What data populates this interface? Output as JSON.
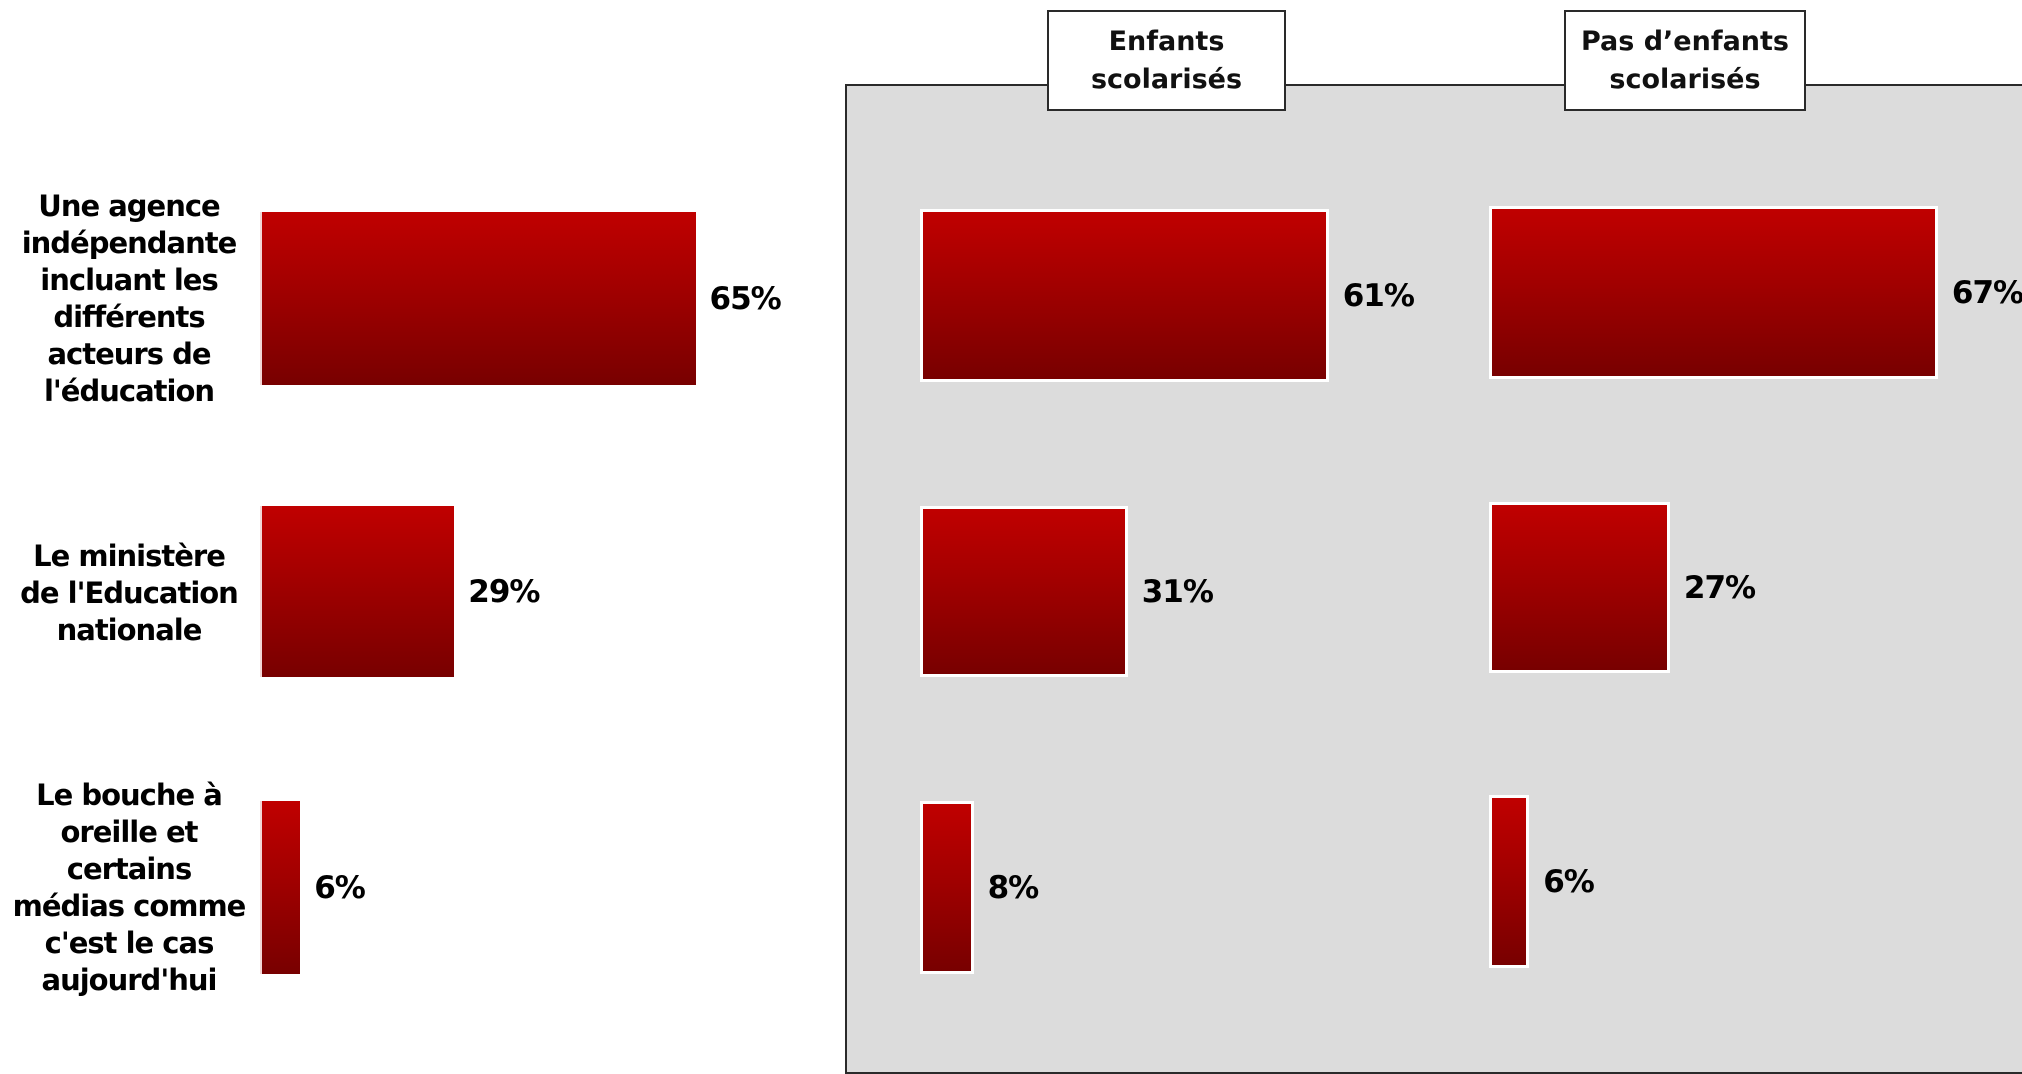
{
  "chart_data": {
    "type": "bar",
    "orientation": "horizontal",
    "categories": [
      "Une agence indépendante incluant les différents acteurs de l'éducation",
      "Le ministère de l'Education nationale",
      "Le bouche à oreille et certains médias comme c'est le cas aujourd'hui"
    ],
    "category_lines": [
      [
        "Une agence",
        "indépendante",
        "incluant les",
        "différents",
        "acteurs de",
        "l'éducation"
      ],
      [
        "Le ministère",
        "de l'Education",
        "nationale"
      ],
      [
        "Le bouche à",
        "oreille et",
        "certains",
        "médias comme",
        "c'est le cas",
        "aujourd'hui"
      ]
    ],
    "series": [
      {
        "name": "",
        "values": [
          65,
          29,
          6
        ],
        "value_labels": [
          "65%",
          "29%",
          "6%"
        ]
      },
      {
        "name": "Enfants scolarisés",
        "values": [
          61,
          31,
          8
        ],
        "value_labels": [
          "61%",
          "31%",
          "8%"
        ]
      },
      {
        "name": "Pas d’enfants scolarisés",
        "values": [
          67,
          27,
          6
        ],
        "value_labels": [
          "67%",
          "27%",
          "6%"
        ]
      }
    ],
    "group_headers": [
      [
        "Enfants",
        "scolarisés"
      ],
      [
        "Pas d’enfants",
        "scolarisés"
      ]
    ],
    "unit": "%",
    "colors": {
      "bar_top": "#c00000",
      "bar_bottom": "#780000",
      "panel": "#dcdcdc"
    }
  }
}
